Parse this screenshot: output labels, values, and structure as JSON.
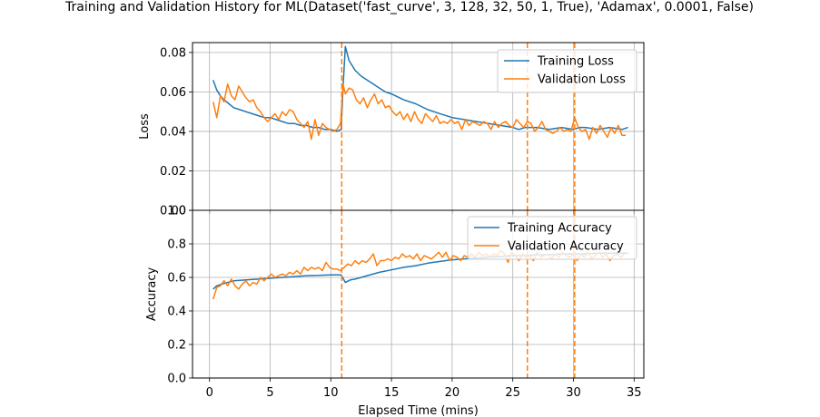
{
  "title": "Training and Validation History for ML(Dataset('fast_curve', 3, 128, 32, 50, 1, True), 'Adamax', 0.0001, False)",
  "colors": {
    "training": "#1f77b4",
    "validation": "#ff7f0e",
    "grid": "#b0b0b0"
  },
  "chart_data": [
    {
      "type": "line",
      "ylabel": "Loss",
      "xlabel": "",
      "xlim": [
        -1.4,
        35.8
      ],
      "ylim": [
        0.0,
        0.085
      ],
      "xticks": [
        0,
        5,
        10,
        15,
        20,
        25,
        30,
        35
      ],
      "yticks": [
        0.0,
        0.02,
        0.04,
        0.06,
        0.08
      ],
      "ytick_labels": [
        "0.00",
        "0.02",
        "0.04",
        "0.06",
        "0.08"
      ],
      "grid": true,
      "legend_position": "top-right",
      "vlines": [
        10.9,
        26.2,
        30.1
      ],
      "series": [
        {
          "name": "Training Loss",
          "color": "#1f77b4",
          "x": [
            0.3,
            0.6,
            0.9,
            1.2,
            1.6,
            2.0,
            2.5,
            3.0,
            3.5,
            4.0,
            4.5,
            5.0,
            5.5,
            6.0,
            6.5,
            7.0,
            7.5,
            8.0,
            8.5,
            9.0,
            9.5,
            10.0,
            10.5,
            10.85,
            11.0,
            11.2,
            11.5,
            12.0,
            12.5,
            13.0,
            13.5,
            14.0,
            14.5,
            15.0,
            16.0,
            17.0,
            18.0,
            19.0,
            20.0,
            21.0,
            22.0,
            23.0,
            24.0,
            25.0,
            25.5,
            26.0,
            26.5,
            27.0,
            28.0,
            29.0,
            30.0,
            30.5,
            31.0,
            32.0,
            33.0,
            34.0,
            34.5
          ],
          "y": [
            0.066,
            0.061,
            0.058,
            0.056,
            0.054,
            0.052,
            0.051,
            0.05,
            0.049,
            0.048,
            0.047,
            0.047,
            0.046,
            0.045,
            0.044,
            0.044,
            0.043,
            0.043,
            0.042,
            0.042,
            0.041,
            0.041,
            0.04,
            0.041,
            0.062,
            0.083,
            0.076,
            0.071,
            0.068,
            0.066,
            0.064,
            0.062,
            0.06,
            0.059,
            0.056,
            0.054,
            0.051,
            0.049,
            0.047,
            0.046,
            0.045,
            0.044,
            0.043,
            0.042,
            0.041,
            0.042,
            0.042,
            0.042,
            0.041,
            0.042,
            0.041,
            0.042,
            0.042,
            0.041,
            0.042,
            0.041,
            0.042
          ]
        },
        {
          "name": "Validation Loss",
          "color": "#ff7f0e",
          "x": [
            0.3,
            0.6,
            0.9,
            1.2,
            1.5,
            1.8,
            2.1,
            2.4,
            2.7,
            3.0,
            3.3,
            3.6,
            3.9,
            4.2,
            4.5,
            4.8,
            5.1,
            5.4,
            5.7,
            6.0,
            6.3,
            6.6,
            6.9,
            7.2,
            7.5,
            7.8,
            8.1,
            8.4,
            8.7,
            9.0,
            9.3,
            9.6,
            9.9,
            10.2,
            10.5,
            10.8,
            11.0,
            11.2,
            11.5,
            11.8,
            12.1,
            12.4,
            12.7,
            13.0,
            13.3,
            13.6,
            13.9,
            14.2,
            14.5,
            14.8,
            15.1,
            15.4,
            15.7,
            16.0,
            16.3,
            16.6,
            16.9,
            17.2,
            17.5,
            17.8,
            18.1,
            18.4,
            18.7,
            19.0,
            19.3,
            19.6,
            19.9,
            20.2,
            20.5,
            20.8,
            21.1,
            21.4,
            21.7,
            22.0,
            22.3,
            22.6,
            22.9,
            23.2,
            23.5,
            23.8,
            24.1,
            24.4,
            24.7,
            25.0,
            25.3,
            25.6,
            25.9,
            26.2,
            26.5,
            26.8,
            27.1,
            27.4,
            27.7,
            28.0,
            28.3,
            28.6,
            28.9,
            29.2,
            29.5,
            29.8,
            30.1,
            30.4,
            30.7,
            31.0,
            31.3,
            31.6,
            31.9,
            32.2,
            32.5,
            32.8,
            33.1,
            33.4,
            33.7,
            34.0,
            34.3
          ],
          "y": [
            0.055,
            0.047,
            0.058,
            0.055,
            0.064,
            0.058,
            0.056,
            0.063,
            0.06,
            0.057,
            0.055,
            0.056,
            0.052,
            0.05,
            0.047,
            0.045,
            0.047,
            0.049,
            0.046,
            0.05,
            0.048,
            0.051,
            0.05,
            0.046,
            0.044,
            0.042,
            0.045,
            0.036,
            0.046,
            0.038,
            0.044,
            0.042,
            0.041,
            0.04,
            0.041,
            0.044,
            0.064,
            0.059,
            0.062,
            0.061,
            0.056,
            0.054,
            0.057,
            0.052,
            0.056,
            0.059,
            0.054,
            0.056,
            0.052,
            0.053,
            0.05,
            0.048,
            0.05,
            0.046,
            0.049,
            0.045,
            0.05,
            0.046,
            0.044,
            0.049,
            0.047,
            0.045,
            0.048,
            0.044,
            0.045,
            0.044,
            0.046,
            0.044,
            0.045,
            0.041,
            0.046,
            0.043,
            0.045,
            0.044,
            0.043,
            0.045,
            0.044,
            0.041,
            0.045,
            0.042,
            0.044,
            0.045,
            0.043,
            0.042,
            0.046,
            0.044,
            0.042,
            0.045,
            0.044,
            0.04,
            0.042,
            0.045,
            0.041,
            0.04,
            0.039,
            0.04,
            0.042,
            0.04,
            0.041,
            0.04,
            0.047,
            0.042,
            0.04,
            0.041,
            0.036,
            0.042,
            0.039,
            0.043,
            0.04,
            0.037,
            0.042,
            0.039,
            0.043,
            0.038,
            0.038
          ]
        }
      ]
    },
    {
      "type": "line",
      "ylabel": "Accuracy",
      "xlabel": "Elapsed Time (mins)",
      "xlim": [
        -1.4,
        35.8
      ],
      "ylim": [
        0.0,
        1.0
      ],
      "xticks": [
        0,
        5,
        10,
        15,
        20,
        25,
        30,
        35
      ],
      "yticks": [
        0.0,
        0.2,
        0.4,
        0.6,
        0.8,
        1.0
      ],
      "ytick_labels": [
        "0.0",
        "0.2",
        "0.4",
        "0.6",
        "0.8",
        "1.0"
      ],
      "grid": true,
      "legend_position": "top-right",
      "vlines": [
        10.9,
        26.2,
        30.1
      ],
      "series": [
        {
          "name": "Training Accuracy",
          "color": "#1f77b4",
          "x": [
            0.3,
            0.6,
            1.0,
            1.5,
            2.0,
            3.0,
            4.0,
            5.0,
            6.0,
            7.0,
            8.0,
            9.0,
            10.0,
            10.85,
            11.2,
            11.6,
            12.0,
            13.0,
            14.0,
            15.0,
            16.0,
            17.0,
            18.0,
            19.0,
            20.0,
            21.0,
            22.0,
            23.0,
            24.0,
            25.0,
            26.0,
            27.0,
            28.0,
            29.0,
            30.0,
            31.0,
            32.0,
            33.0,
            34.0,
            34.5
          ],
          "y": [
            0.53,
            0.55,
            0.56,
            0.57,
            0.58,
            0.585,
            0.59,
            0.595,
            0.6,
            0.605,
            0.61,
            0.612,
            0.615,
            0.615,
            0.57,
            0.585,
            0.59,
            0.61,
            0.63,
            0.645,
            0.66,
            0.67,
            0.685,
            0.695,
            0.705,
            0.71,
            0.715,
            0.72,
            0.725,
            0.73,
            0.73,
            0.735,
            0.735,
            0.74,
            0.74,
            0.74,
            0.745,
            0.745,
            0.745,
            0.745
          ]
        },
        {
          "name": "Validation Accuracy",
          "color": "#ff7f0e",
          "x": [
            0.3,
            0.6,
            0.9,
            1.2,
            1.5,
            1.8,
            2.1,
            2.4,
            2.7,
            3.0,
            3.3,
            3.6,
            3.9,
            4.2,
            4.5,
            4.8,
            5.1,
            5.4,
            5.7,
            6.0,
            6.3,
            6.6,
            6.9,
            7.2,
            7.5,
            7.8,
            8.1,
            8.4,
            8.7,
            9.0,
            9.3,
            9.6,
            9.9,
            10.2,
            10.5,
            10.8,
            11.1,
            11.4,
            11.7,
            12.0,
            12.3,
            12.6,
            12.9,
            13.2,
            13.5,
            13.8,
            14.1,
            14.4,
            14.7,
            15.0,
            15.3,
            15.6,
            15.9,
            16.2,
            16.5,
            16.8,
            17.1,
            17.4,
            17.7,
            18.0,
            18.3,
            18.6,
            18.9,
            19.2,
            19.5,
            19.8,
            20.1,
            20.4,
            20.7,
            21.0,
            21.3,
            21.6,
            21.9,
            22.2,
            22.5,
            22.8,
            23.1,
            23.4,
            23.7,
            24.0,
            24.3,
            24.6,
            24.9,
            25.2,
            25.5,
            25.8,
            26.1,
            26.4,
            26.7,
            27.0,
            27.3,
            27.6,
            27.9,
            28.2,
            28.5,
            28.8,
            29.1,
            29.4,
            29.7,
            30.0,
            30.3,
            30.6,
            30.9,
            31.2,
            31.5,
            31.8,
            32.1,
            32.4,
            32.7,
            33.0,
            33.3,
            33.6,
            33.9,
            34.2
          ],
          "y": [
            0.47,
            0.54,
            0.55,
            0.58,
            0.55,
            0.59,
            0.55,
            0.53,
            0.56,
            0.58,
            0.55,
            0.57,
            0.56,
            0.6,
            0.58,
            0.6,
            0.62,
            0.6,
            0.61,
            0.62,
            0.61,
            0.63,
            0.62,
            0.64,
            0.62,
            0.66,
            0.64,
            0.66,
            0.65,
            0.66,
            0.64,
            0.69,
            0.66,
            0.65,
            0.65,
            0.64,
            0.66,
            0.68,
            0.67,
            0.7,
            0.68,
            0.7,
            0.69,
            0.71,
            0.74,
            0.67,
            0.7,
            0.7,
            0.71,
            0.7,
            0.72,
            0.71,
            0.74,
            0.72,
            0.73,
            0.71,
            0.74,
            0.7,
            0.73,
            0.72,
            0.71,
            0.73,
            0.75,
            0.72,
            0.75,
            0.7,
            0.73,
            0.72,
            0.7,
            0.73,
            0.72,
            0.74,
            0.72,
            0.75,
            0.73,
            0.74,
            0.72,
            0.74,
            0.73,
            0.76,
            0.74,
            0.69,
            0.75,
            0.73,
            0.7,
            0.74,
            0.72,
            0.73,
            0.7,
            0.75,
            0.72,
            0.73,
            0.74,
            0.71,
            0.74,
            0.72,
            0.75,
            0.73,
            0.72,
            0.74,
            0.7,
            0.74,
            0.72,
            0.75,
            0.71,
            0.73,
            0.75,
            0.72,
            0.74,
            0.7,
            0.73,
            0.74,
            0.72,
            0.74
          ]
        }
      ]
    }
  ]
}
